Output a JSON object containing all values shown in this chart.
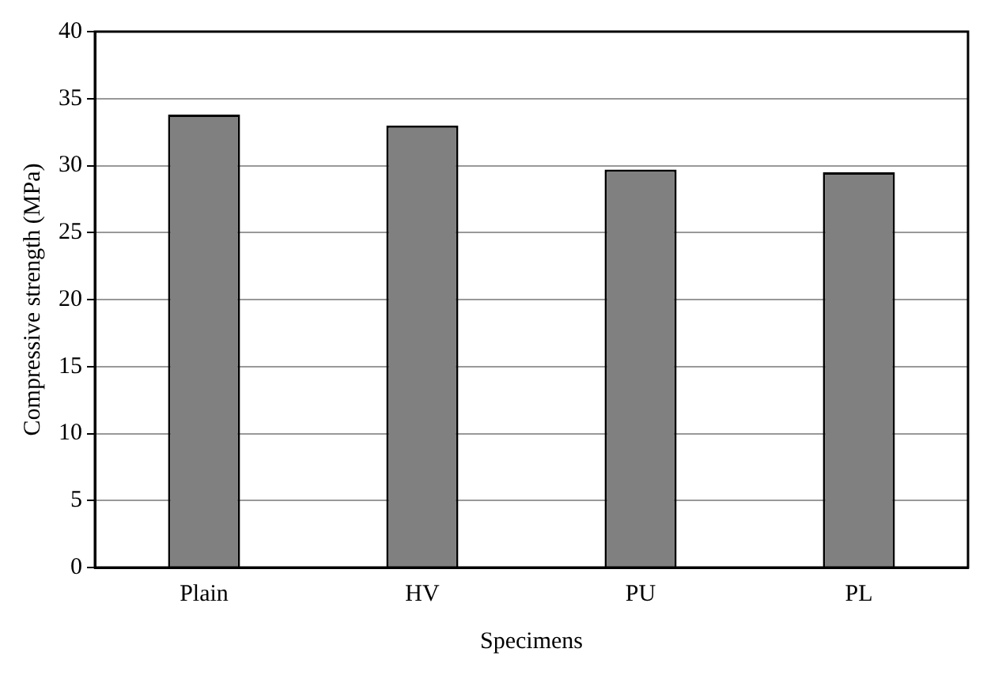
{
  "chart_data": {
    "type": "bar",
    "xlabel": "Specimens",
    "ylabel": "Compressive strength (MPa)",
    "categories": [
      "Plain",
      "HV",
      "PU",
      "PL"
    ],
    "values": [
      33.8,
      33.0,
      29.7,
      29.5
    ],
    "color": "#808080",
    "ylim": [
      0,
      40
    ],
    "yticks": [
      0,
      5,
      10,
      15,
      20,
      25,
      30,
      35,
      40
    ],
    "grid": "y",
    "legend": false
  }
}
